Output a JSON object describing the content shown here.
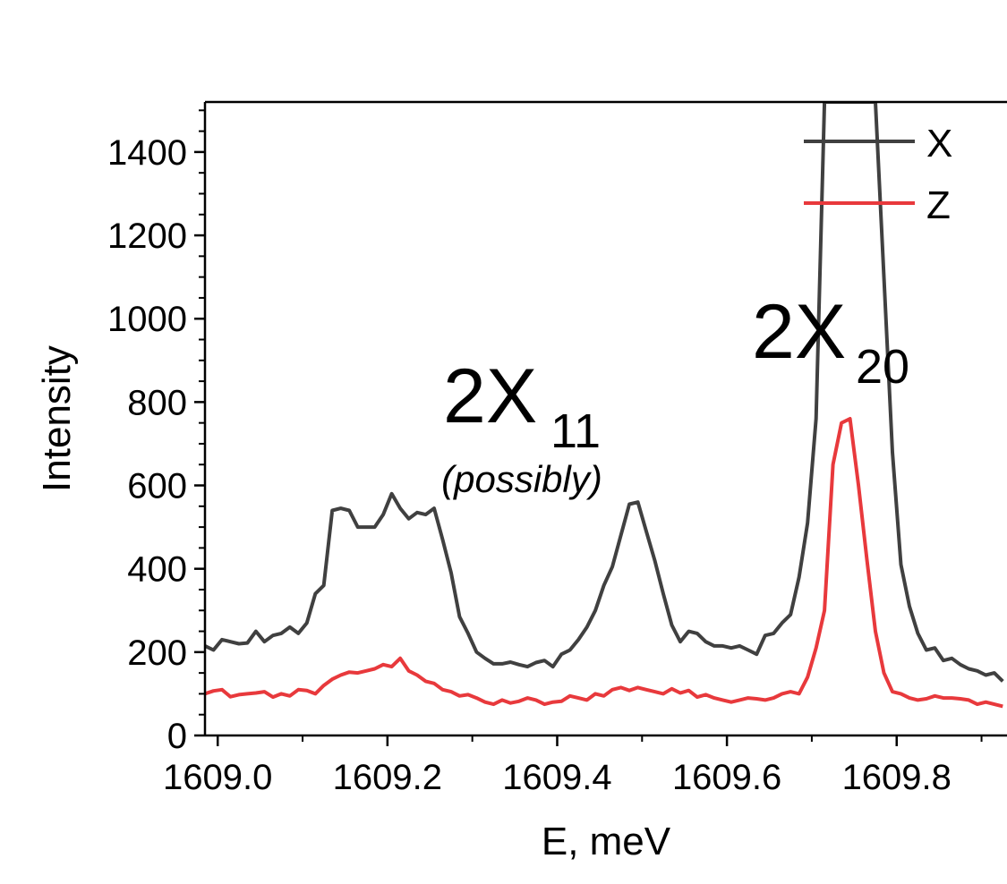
{
  "chart_data": {
    "type": "line",
    "xlabel": "E, meV",
    "ylabel": "Intensity",
    "xlim": [
      1608.985,
      1609.93
    ],
    "ylim": [
      0,
      1520
    ],
    "x_ticks": [
      1609.0,
      1609.2,
      1609.4,
      1609.6,
      1609.8
    ],
    "x_tick_labels": [
      "1609.0",
      "1609.2",
      "1609.4",
      "1609.6",
      "1609.8"
    ],
    "y_ticks": [
      0,
      200,
      400,
      600,
      800,
      1000,
      1200,
      1400
    ],
    "y_tick_labels": [
      "0",
      "200",
      "400",
      "600",
      "800",
      "1000",
      "1200",
      "1400"
    ],
    "grid": false,
    "legend_position": "top-right",
    "series": [
      {
        "name": "X",
        "color": "#404040",
        "x": [
          1608.985,
          1608.995,
          1609.005,
          1609.015,
          1609.025,
          1609.035,
          1609.045,
          1609.055,
          1609.065,
          1609.075,
          1609.085,
          1609.095,
          1609.105,
          1609.115,
          1609.125,
          1609.135,
          1609.145,
          1609.155,
          1609.165,
          1609.175,
          1609.185,
          1609.195,
          1609.205,
          1609.215,
          1609.225,
          1609.235,
          1609.245,
          1609.255,
          1609.265,
          1609.275,
          1609.285,
          1609.295,
          1609.305,
          1609.315,
          1609.325,
          1609.335,
          1609.345,
          1609.355,
          1609.365,
          1609.375,
          1609.385,
          1609.395,
          1609.405,
          1609.415,
          1609.425,
          1609.435,
          1609.445,
          1609.455,
          1609.465,
          1609.475,
          1609.485,
          1609.495,
          1609.505,
          1609.515,
          1609.525,
          1609.535,
          1609.545,
          1609.555,
          1609.565,
          1609.575,
          1609.585,
          1609.595,
          1609.605,
          1609.615,
          1609.625,
          1609.635,
          1609.645,
          1609.655,
          1609.665,
          1609.675,
          1609.685,
          1609.695,
          1609.705,
          1609.715,
          1609.725,
          1609.735,
          1609.745,
          1609.755,
          1609.765,
          1609.775,
          1609.785,
          1609.795,
          1609.805,
          1609.815,
          1609.825,
          1609.835,
          1609.845,
          1609.855,
          1609.865,
          1609.875,
          1609.885,
          1609.895,
          1609.905,
          1609.915,
          1609.925
        ],
        "values": [
          215,
          205,
          230,
          225,
          220,
          222,
          250,
          225,
          240,
          245,
          260,
          245,
          270,
          340,
          360,
          540,
          545,
          540,
          500,
          500,
          500,
          530,
          580,
          545,
          520,
          535,
          530,
          545,
          470,
          390,
          285,
          245,
          200,
          185,
          172,
          172,
          176,
          170,
          165,
          175,
          180,
          165,
          195,
          205,
          230,
          260,
          300,
          360,
          405,
          480,
          555,
          560,
          490,
          420,
          340,
          265,
          225,
          250,
          245,
          225,
          215,
          215,
          210,
          215,
          205,
          195,
          240,
          245,
          270,
          290,
          380,
          510,
          760,
          1520,
          1520,
          1520,
          1520,
          1520,
          1520,
          1520,
          1100,
          680,
          410,
          310,
          245,
          205,
          210,
          180,
          185,
          170,
          160,
          155,
          145,
          150,
          130
        ]
      },
      {
        "name": "Z",
        "color": "#e8393c",
        "x": [
          1608.985,
          1608.995,
          1609.005,
          1609.015,
          1609.025,
          1609.035,
          1609.045,
          1609.055,
          1609.065,
          1609.075,
          1609.085,
          1609.095,
          1609.105,
          1609.115,
          1609.125,
          1609.135,
          1609.145,
          1609.155,
          1609.165,
          1609.175,
          1609.185,
          1609.195,
          1609.205,
          1609.215,
          1609.225,
          1609.235,
          1609.245,
          1609.255,
          1609.265,
          1609.275,
          1609.285,
          1609.295,
          1609.305,
          1609.315,
          1609.325,
          1609.335,
          1609.345,
          1609.355,
          1609.365,
          1609.375,
          1609.385,
          1609.395,
          1609.405,
          1609.415,
          1609.425,
          1609.435,
          1609.445,
          1609.455,
          1609.465,
          1609.475,
          1609.485,
          1609.495,
          1609.505,
          1609.515,
          1609.525,
          1609.535,
          1609.545,
          1609.555,
          1609.565,
          1609.575,
          1609.585,
          1609.595,
          1609.605,
          1609.615,
          1609.625,
          1609.635,
          1609.645,
          1609.655,
          1609.665,
          1609.675,
          1609.685,
          1609.695,
          1609.705,
          1609.715,
          1609.725,
          1609.735,
          1609.745,
          1609.755,
          1609.765,
          1609.775,
          1609.785,
          1609.795,
          1609.805,
          1609.815,
          1609.825,
          1609.835,
          1609.845,
          1609.855,
          1609.865,
          1609.875,
          1609.885,
          1609.895,
          1609.905,
          1609.915,
          1609.925
        ],
        "values": [
          100,
          107,
          110,
          93,
          98,
          100,
          102,
          105,
          92,
          100,
          95,
          110,
          108,
          100,
          120,
          135,
          145,
          152,
          150,
          155,
          160,
          170,
          165,
          185,
          155,
          145,
          130,
          125,
          110,
          105,
          95,
          98,
          90,
          80,
          75,
          85,
          78,
          82,
          90,
          85,
          75,
          80,
          82,
          95,
          90,
          85,
          100,
          95,
          110,
          115,
          108,
          115,
          110,
          105,
          100,
          112,
          102,
          108,
          92,
          98,
          90,
          85,
          80,
          85,
          90,
          88,
          85,
          90,
          100,
          105,
          100,
          140,
          210,
          300,
          650,
          750,
          760,
          600,
          420,
          250,
          150,
          105,
          100,
          90,
          85,
          88,
          95,
          90,
          90,
          88,
          85,
          75,
          80,
          75,
          70
        ]
      }
    ],
    "annotations": [
      {
        "main": "2X",
        "sub": "11",
        "note": "(possibly)"
      },
      {
        "main": "2X",
        "sub": "20"
      }
    ]
  }
}
